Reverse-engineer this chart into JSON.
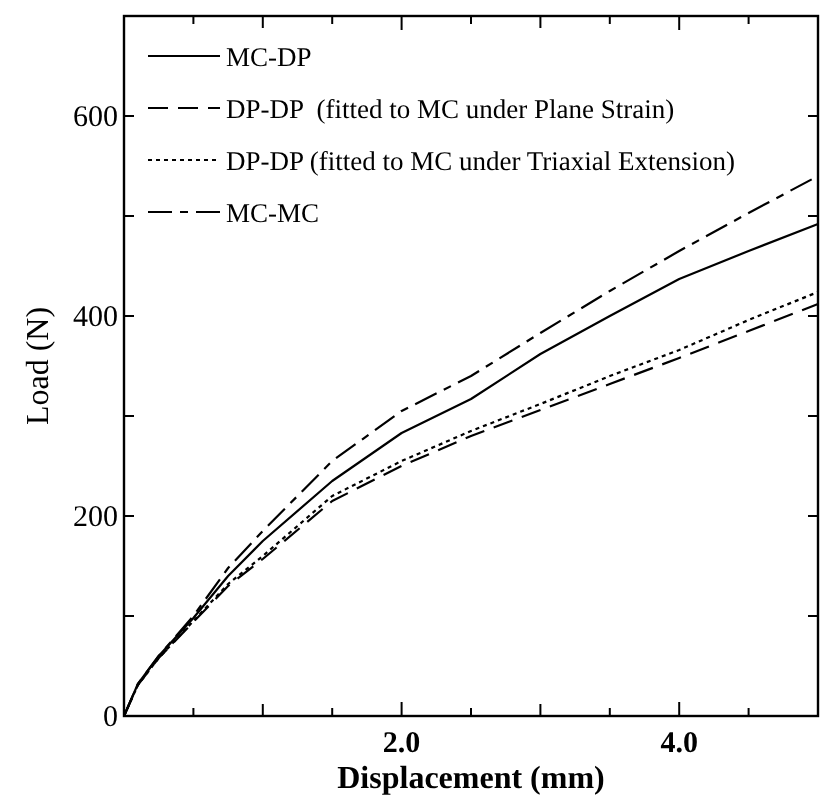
{
  "chart_data": {
    "type": "line",
    "xlabel": "Displacement (mm)",
    "ylabel": "Load (N)",
    "xlim": [
      0,
      5
    ],
    "ylim": [
      0,
      700
    ],
    "xticks": [
      {
        "value": 0.5,
        "label": null
      },
      {
        "value": 1,
        "label": null
      },
      {
        "value": 1.5,
        "label": null
      },
      {
        "value": 2,
        "label": "2.0"
      },
      {
        "value": 2.5,
        "label": null
      },
      {
        "value": 3,
        "label": null
      },
      {
        "value": 3.5,
        "label": null
      },
      {
        "value": 4,
        "label": "4.0"
      },
      {
        "value": 4.5,
        "label": null
      }
    ],
    "yticks": [
      0,
      {
        "value": 100,
        "label": null
      },
      200,
      {
        "value": 300,
        "label": null
      },
      400,
      {
        "value": 500,
        "label": null
      },
      600
    ],
    "x": [
      0,
      0.1,
      0.25,
      0.5,
      0.75,
      1,
      1.5,
      2,
      2.5,
      3,
      3.5,
      4,
      4.5,
      5
    ],
    "legend": "top left",
    "grid": false,
    "marker": "none",
    "series": [
      {
        "name": "MC-DP",
        "color": "#000000",
        "line_style": "solid",
        "values": [
          0,
          32,
          60,
          98,
          140,
          175,
          235,
          283,
          317,
          362,
          400,
          437,
          465,
          492
        ]
      },
      {
        "name": "DP-DP  (fitted to MC under Plane Strain)",
        "color": "#000000",
        "line_style": "dashed",
        "values": [
          0,
          31,
          58,
          94,
          130,
          157,
          215,
          250,
          280,
          306,
          332,
          358,
          385,
          412
        ]
      },
      {
        "name": "DP-DP (fitted to MC under Triaxial Extension)",
        "color": "#000000",
        "line_style": "dotted",
        "values": [
          0,
          31,
          58,
          95,
          132,
          160,
          220,
          255,
          285,
          312,
          340,
          366,
          396,
          424
        ]
      },
      {
        "name": "MC-MC",
        "color": "#000000",
        "line_style": "dashdot",
        "values": [
          0,
          32,
          60,
          100,
          148,
          185,
          255,
          305,
          340,
          383,
          425,
          465,
          503,
          540
        ]
      }
    ]
  }
}
